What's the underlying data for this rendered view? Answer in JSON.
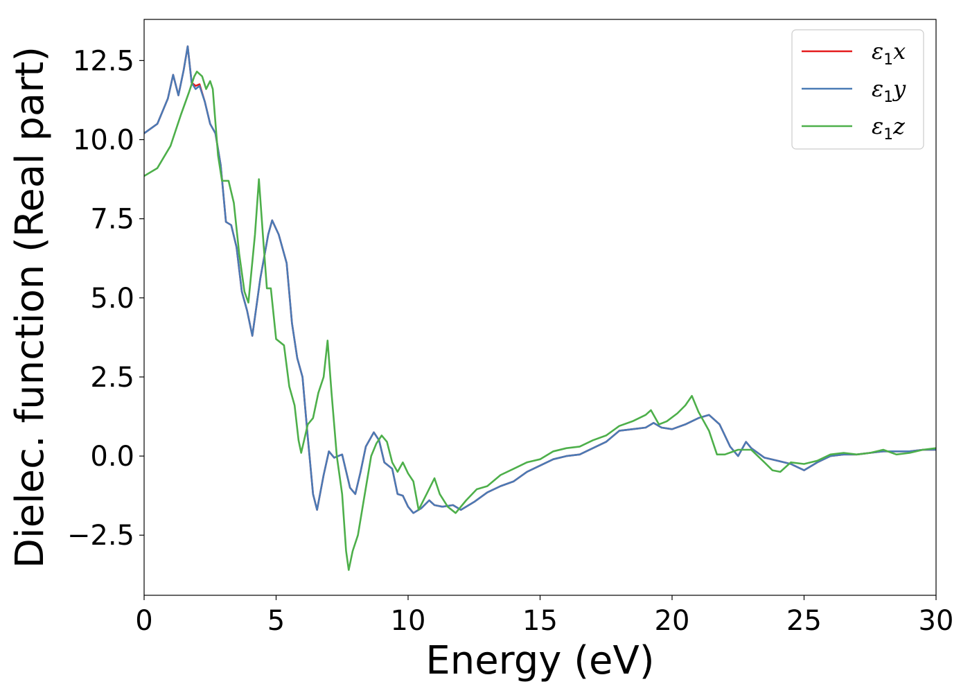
{
  "chart_data": {
    "type": "line",
    "title": "",
    "xlabel": "Energy (eV)",
    "ylabel": "Dielec. function (Real part)",
    "xlim": [
      0,
      30
    ],
    "ylim": [
      -4.4,
      13.8
    ],
    "grid": false,
    "legend_position": "top-right",
    "x_ticks": [
      {
        "value": 0,
        "label": "0"
      },
      {
        "value": 5,
        "label": "5"
      },
      {
        "value": 10,
        "label": "10"
      },
      {
        "value": 15,
        "label": "15"
      },
      {
        "value": 20,
        "label": "20"
      },
      {
        "value": 25,
        "label": "25"
      },
      {
        "value": 30,
        "label": "30"
      }
    ],
    "y_ticks": [
      {
        "value": -2.5,
        "label": "−2.5"
      },
      {
        "value": 0,
        "label": "0.0"
      },
      {
        "value": 2.5,
        "label": "2.5"
      },
      {
        "value": 5,
        "label": "5.0"
      },
      {
        "value": 7.5,
        "label": "7.5"
      },
      {
        "value": 10,
        "label": "10.0"
      },
      {
        "value": 12.5,
        "label": "12.5"
      }
    ],
    "series": [
      {
        "name": "ε1x",
        "legend_main": "ε",
        "legend_sub": "1",
        "legend_var": "x",
        "color": "#e41a1c",
        "points": [
          [
            0,
            10.2
          ],
          [
            0.5,
            10.5
          ],
          [
            0.9,
            11.3
          ],
          [
            1.1,
            12.05
          ],
          [
            1.3,
            11.4
          ],
          [
            1.5,
            12.2
          ],
          [
            1.65,
            12.95
          ],
          [
            1.8,
            11.8
          ],
          [
            1.95,
            11.7
          ],
          [
            2.1,
            11.75
          ],
          [
            2.3,
            11.2
          ],
          [
            2.5,
            10.5
          ],
          [
            2.7,
            10.2
          ],
          [
            2.9,
            9.2
          ],
          [
            3.1,
            7.4
          ],
          [
            3.3,
            7.3
          ],
          [
            3.5,
            6.6
          ],
          [
            3.7,
            5.2
          ],
          [
            3.9,
            4.6
          ],
          [
            4.1,
            3.8
          ],
          [
            4.4,
            5.6
          ],
          [
            4.7,
            7.0
          ],
          [
            4.85,
            7.45
          ],
          [
            5.1,
            7.0
          ],
          [
            5.4,
            6.1
          ],
          [
            5.6,
            4.2
          ],
          [
            5.8,
            3.1
          ],
          [
            6.0,
            2.5
          ],
          [
            6.2,
            0.6
          ],
          [
            6.4,
            -1.2
          ],
          [
            6.55,
            -1.7
          ],
          [
            6.8,
            -0.6
          ],
          [
            7.0,
            0.15
          ],
          [
            7.2,
            -0.05
          ],
          [
            7.5,
            0.05
          ],
          [
            7.8,
            -1.0
          ],
          [
            8.0,
            -1.2
          ],
          [
            8.2,
            -0.5
          ],
          [
            8.4,
            0.3
          ],
          [
            8.7,
            0.75
          ],
          [
            8.9,
            0.5
          ],
          [
            9.1,
            -0.2
          ],
          [
            9.4,
            -0.4
          ],
          [
            9.6,
            -1.2
          ],
          [
            9.8,
            -1.25
          ],
          [
            10.0,
            -1.6
          ],
          [
            10.2,
            -1.8
          ],
          [
            10.5,
            -1.65
          ],
          [
            10.8,
            -1.4
          ],
          [
            11.0,
            -1.55
          ],
          [
            11.3,
            -1.6
          ],
          [
            11.7,
            -1.55
          ],
          [
            12.0,
            -1.7
          ],
          [
            12.5,
            -1.45
          ],
          [
            13.0,
            -1.15
          ],
          [
            13.5,
            -0.95
          ],
          [
            14.0,
            -0.8
          ],
          [
            14.5,
            -0.5
          ],
          [
            15.0,
            -0.3
          ],
          [
            15.5,
            -0.1
          ],
          [
            16.0,
            0.0
          ],
          [
            16.5,
            0.05
          ],
          [
            17.0,
            0.25
          ],
          [
            17.5,
            0.45
          ],
          [
            18.0,
            0.8
          ],
          [
            18.5,
            0.85
          ],
          [
            19.0,
            0.9
          ],
          [
            19.3,
            1.05
          ],
          [
            19.6,
            0.9
          ],
          [
            20.0,
            0.85
          ],
          [
            20.5,
            1.0
          ],
          [
            21.0,
            1.2
          ],
          [
            21.4,
            1.3
          ],
          [
            21.8,
            1.0
          ],
          [
            22.2,
            0.3
          ],
          [
            22.5,
            0.0
          ],
          [
            22.8,
            0.45
          ],
          [
            23.0,
            0.25
          ],
          [
            23.5,
            -0.05
          ],
          [
            24.0,
            -0.15
          ],
          [
            24.5,
            -0.25
          ],
          [
            25.0,
            -0.45
          ],
          [
            25.5,
            -0.2
          ],
          [
            26.0,
            0.0
          ],
          [
            26.5,
            0.05
          ],
          [
            27.0,
            0.05
          ],
          [
            27.5,
            0.1
          ],
          [
            28.0,
            0.15
          ],
          [
            28.5,
            0.15
          ],
          [
            29.0,
            0.15
          ],
          [
            29.5,
            0.2
          ],
          [
            30.0,
            0.2
          ]
        ]
      },
      {
        "name": "ε1y",
        "legend_main": "ε",
        "legend_sub": "1",
        "legend_var": "y",
        "color": "#4a7ab5",
        "points": [
          [
            0,
            10.2
          ],
          [
            0.5,
            10.5
          ],
          [
            0.9,
            11.3
          ],
          [
            1.1,
            12.05
          ],
          [
            1.3,
            11.4
          ],
          [
            1.5,
            12.2
          ],
          [
            1.65,
            12.95
          ],
          [
            1.8,
            11.8
          ],
          [
            1.95,
            11.6
          ],
          [
            2.1,
            11.7
          ],
          [
            2.3,
            11.2
          ],
          [
            2.5,
            10.5
          ],
          [
            2.7,
            10.2
          ],
          [
            2.9,
            9.2
          ],
          [
            3.1,
            7.4
          ],
          [
            3.3,
            7.3
          ],
          [
            3.5,
            6.6
          ],
          [
            3.7,
            5.2
          ],
          [
            3.9,
            4.6
          ],
          [
            4.1,
            3.8
          ],
          [
            4.4,
            5.6
          ],
          [
            4.7,
            7.0
          ],
          [
            4.85,
            7.45
          ],
          [
            5.1,
            7.0
          ],
          [
            5.4,
            6.1
          ],
          [
            5.6,
            4.2
          ],
          [
            5.8,
            3.1
          ],
          [
            6.0,
            2.5
          ],
          [
            6.2,
            0.6
          ],
          [
            6.4,
            -1.2
          ],
          [
            6.55,
            -1.7
          ],
          [
            6.8,
            -0.6
          ],
          [
            7.0,
            0.15
          ],
          [
            7.2,
            -0.05
          ],
          [
            7.5,
            0.05
          ],
          [
            7.8,
            -1.0
          ],
          [
            8.0,
            -1.2
          ],
          [
            8.2,
            -0.5
          ],
          [
            8.4,
            0.3
          ],
          [
            8.7,
            0.75
          ],
          [
            8.9,
            0.5
          ],
          [
            9.1,
            -0.2
          ],
          [
            9.4,
            -0.4
          ],
          [
            9.6,
            -1.2
          ],
          [
            9.8,
            -1.25
          ],
          [
            10.0,
            -1.6
          ],
          [
            10.2,
            -1.8
          ],
          [
            10.5,
            -1.65
          ],
          [
            10.8,
            -1.4
          ],
          [
            11.0,
            -1.55
          ],
          [
            11.3,
            -1.6
          ],
          [
            11.7,
            -1.55
          ],
          [
            12.0,
            -1.7
          ],
          [
            12.5,
            -1.45
          ],
          [
            13.0,
            -1.15
          ],
          [
            13.5,
            -0.95
          ],
          [
            14.0,
            -0.8
          ],
          [
            14.5,
            -0.5
          ],
          [
            15.0,
            -0.3
          ],
          [
            15.5,
            -0.1
          ],
          [
            16.0,
            0.0
          ],
          [
            16.5,
            0.05
          ],
          [
            17.0,
            0.25
          ],
          [
            17.5,
            0.45
          ],
          [
            18.0,
            0.8
          ],
          [
            18.5,
            0.85
          ],
          [
            19.0,
            0.9
          ],
          [
            19.3,
            1.05
          ],
          [
            19.6,
            0.9
          ],
          [
            20.0,
            0.85
          ],
          [
            20.5,
            1.0
          ],
          [
            21.0,
            1.2
          ],
          [
            21.4,
            1.3
          ],
          [
            21.8,
            1.0
          ],
          [
            22.2,
            0.3
          ],
          [
            22.5,
            0.0
          ],
          [
            22.8,
            0.45
          ],
          [
            23.0,
            0.25
          ],
          [
            23.5,
            -0.05
          ],
          [
            24.0,
            -0.15
          ],
          [
            24.5,
            -0.25
          ],
          [
            25.0,
            -0.45
          ],
          [
            25.5,
            -0.2
          ],
          [
            26.0,
            0.0
          ],
          [
            26.5,
            0.05
          ],
          [
            27.0,
            0.05
          ],
          [
            27.5,
            0.1
          ],
          [
            28.0,
            0.15
          ],
          [
            28.5,
            0.15
          ],
          [
            29.0,
            0.15
          ],
          [
            29.5,
            0.2
          ],
          [
            30.0,
            0.2
          ]
        ]
      },
      {
        "name": "ε1z",
        "legend_main": "ε",
        "legend_sub": "1",
        "legend_var": "z",
        "color": "#4daf4a",
        "points": [
          [
            0,
            8.85
          ],
          [
            0.5,
            9.1
          ],
          [
            1.0,
            9.8
          ],
          [
            1.4,
            10.8
          ],
          [
            1.7,
            11.5
          ],
          [
            1.9,
            12.0
          ],
          [
            2.0,
            12.15
          ],
          [
            2.2,
            12.0
          ],
          [
            2.35,
            11.6
          ],
          [
            2.5,
            11.85
          ],
          [
            2.6,
            11.6
          ],
          [
            2.8,
            9.5
          ],
          [
            2.95,
            8.7
          ],
          [
            3.2,
            8.7
          ],
          [
            3.4,
            8.0
          ],
          [
            3.6,
            6.4
          ],
          [
            3.8,
            5.2
          ],
          [
            3.95,
            4.85
          ],
          [
            4.2,
            7.0
          ],
          [
            4.35,
            8.75
          ],
          [
            4.5,
            7.0
          ],
          [
            4.65,
            5.3
          ],
          [
            4.8,
            5.3
          ],
          [
            5.0,
            3.7
          ],
          [
            5.3,
            3.5
          ],
          [
            5.5,
            2.2
          ],
          [
            5.7,
            1.6
          ],
          [
            5.85,
            0.5
          ],
          [
            5.95,
            0.1
          ],
          [
            6.2,
            1.0
          ],
          [
            6.4,
            1.2
          ],
          [
            6.6,
            2.0
          ],
          [
            6.8,
            2.5
          ],
          [
            6.95,
            3.65
          ],
          [
            7.1,
            2.0
          ],
          [
            7.3,
            0.0
          ],
          [
            7.5,
            -1.2
          ],
          [
            7.65,
            -3.0
          ],
          [
            7.75,
            -3.6
          ],
          [
            7.9,
            -3.0
          ],
          [
            8.1,
            -2.5
          ],
          [
            8.3,
            -1.5
          ],
          [
            8.6,
            0.0
          ],
          [
            8.8,
            0.4
          ],
          [
            9.0,
            0.65
          ],
          [
            9.2,
            0.45
          ],
          [
            9.4,
            -0.2
          ],
          [
            9.6,
            -0.5
          ],
          [
            9.8,
            -0.2
          ],
          [
            10.0,
            -0.55
          ],
          [
            10.2,
            -0.8
          ],
          [
            10.4,
            -1.7
          ],
          [
            10.7,
            -1.2
          ],
          [
            11.0,
            -0.7
          ],
          [
            11.2,
            -1.2
          ],
          [
            11.5,
            -1.6
          ],
          [
            11.8,
            -1.8
          ],
          [
            12.2,
            -1.4
          ],
          [
            12.6,
            -1.05
          ],
          [
            13.0,
            -0.95
          ],
          [
            13.5,
            -0.6
          ],
          [
            14.0,
            -0.4
          ],
          [
            14.5,
            -0.2
          ],
          [
            15.0,
            -0.1
          ],
          [
            15.5,
            0.15
          ],
          [
            16.0,
            0.25
          ],
          [
            16.5,
            0.3
          ],
          [
            17.0,
            0.5
          ],
          [
            17.5,
            0.65
          ],
          [
            18.0,
            0.95
          ],
          [
            18.5,
            1.1
          ],
          [
            19.0,
            1.3
          ],
          [
            19.2,
            1.45
          ],
          [
            19.5,
            1.0
          ],
          [
            19.8,
            1.1
          ],
          [
            20.2,
            1.35
          ],
          [
            20.5,
            1.6
          ],
          [
            20.75,
            1.9
          ],
          [
            21.0,
            1.4
          ],
          [
            21.4,
            0.8
          ],
          [
            21.7,
            0.05
          ],
          [
            22.0,
            0.05
          ],
          [
            22.5,
            0.2
          ],
          [
            23.0,
            0.2
          ],
          [
            23.5,
            -0.2
          ],
          [
            23.8,
            -0.45
          ],
          [
            24.1,
            -0.5
          ],
          [
            24.5,
            -0.2
          ],
          [
            25.0,
            -0.25
          ],
          [
            25.5,
            -0.15
          ],
          [
            26.0,
            0.05
          ],
          [
            26.5,
            0.1
          ],
          [
            27.0,
            0.05
          ],
          [
            27.5,
            0.1
          ],
          [
            28.0,
            0.2
          ],
          [
            28.5,
            0.05
          ],
          [
            29.0,
            0.1
          ],
          [
            29.5,
            0.2
          ],
          [
            30.0,
            0.25
          ]
        ]
      }
    ]
  }
}
